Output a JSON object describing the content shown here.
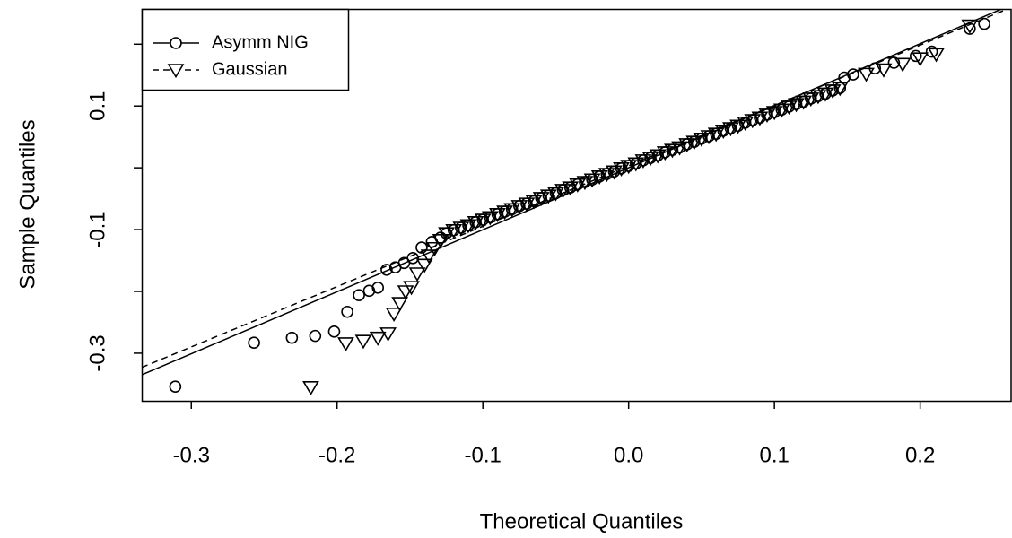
{
  "chart_data": {
    "type": "scatter",
    "x_label": "Theoretical Quantiles",
    "y_label": "Sample Quantiles",
    "xlim": [
      -0.334,
      0.263
    ],
    "ylim": [
      -0.377,
      0.257
    ],
    "xticks": [
      -0.3,
      -0.2,
      -0.1,
      {
        "value": 0,
        "label": "0.0"
      },
      0.1,
      0.2
    ],
    "yticks": [
      -0.3,
      {
        "value": -0.2,
        "label": null
      },
      -0.1,
      {
        "value": 0,
        "label": null
      },
      0.1,
      {
        "value": 0.2,
        "label": null
      }
    ],
    "legend": "top-left",
    "series": [
      {
        "name": "Asymm NIG",
        "color": "#000000",
        "marker": "circle",
        "line_style": "solid",
        "x": [
          -0.311,
          -0.257,
          -0.231,
          -0.215,
          -0.202,
          -0.193,
          -0.185,
          -0.178,
          -0.172,
          -0.166,
          -0.16,
          -0.154,
          -0.148,
          -0.142,
          -0.135,
          -0.129,
          -0.125,
          -0.12,
          -0.115,
          -0.11,
          -0.105,
          -0.1,
          -0.095,
          -0.09,
          -0.085,
          -0.08,
          -0.075,
          -0.07,
          -0.065,
          -0.06,
          -0.055,
          -0.05,
          -0.045,
          -0.04,
          -0.035,
          -0.03,
          -0.025,
          -0.02,
          -0.015,
          -0.01,
          -0.005,
          0,
          0.005,
          0.01,
          0.015,
          0.02,
          0.025,
          0.03,
          0.035,
          0.04,
          0.045,
          0.05,
          0.055,
          0.06,
          0.065,
          0.07,
          0.075,
          0.08,
          0.085,
          0.09,
          0.095,
          0.1,
          0.105,
          0.11,
          0.115,
          0.12,
          0.125,
          0.13,
          0.135,
          0.14,
          0.145,
          0.148,
          0.154,
          0.169,
          0.182,
          0.197,
          0.208,
          0.234,
          0.244
        ],
        "values": [
          -0.354,
          -0.283,
          -0.275,
          -0.272,
          -0.265,
          -0.233,
          -0.206,
          -0.199,
          -0.194,
          -0.165,
          -0.161,
          -0.154,
          -0.146,
          -0.129,
          -0.12,
          -0.113,
          -0.106,
          -0.101,
          -0.097,
          -0.093,
          -0.088,
          -0.084,
          -0.08,
          -0.075,
          -0.071,
          -0.067,
          -0.062,
          -0.058,
          -0.054,
          -0.049,
          -0.045,
          -0.041,
          -0.036,
          -0.032,
          -0.027,
          -0.023,
          -0.019,
          -0.014,
          -0.01,
          -0.006,
          -0.001,
          0.003,
          0.007,
          0.012,
          0.016,
          0.02,
          0.025,
          0.029,
          0.033,
          0.038,
          0.042,
          0.047,
          0.051,
          0.055,
          0.06,
          0.064,
          0.068,
          0.073,
          0.077,
          0.081,
          0.086,
          0.09,
          0.094,
          0.099,
          0.103,
          0.107,
          0.112,
          0.116,
          0.12,
          0.125,
          0.129,
          0.146,
          0.151,
          0.161,
          0.17,
          0.181,
          0.188,
          0.225,
          0.233
        ],
        "ref_line": {
          "x": [
            -0.334,
            0.263
          ],
          "y": [
            -0.335,
            0.264
          ]
        }
      },
      {
        "name": "Gaussian",
        "color": "#000000",
        "marker": "triangle-down",
        "line_style": "dashed",
        "x": [
          -0.218,
          -0.194,
          -0.182,
          -0.172,
          -0.165,
          -0.161,
          -0.157,
          -0.153,
          -0.149,
          -0.145,
          -0.14,
          -0.137,
          -0.133,
          -0.129,
          -0.125,
          -0.12,
          -0.115,
          -0.11,
          -0.105,
          -0.1,
          -0.095,
          -0.09,
          -0.085,
          -0.08,
          -0.075,
          -0.07,
          -0.065,
          -0.06,
          -0.055,
          -0.05,
          -0.045,
          -0.04,
          -0.035,
          -0.03,
          -0.025,
          -0.02,
          -0.015,
          -0.01,
          -0.005,
          0,
          0.005,
          0.01,
          0.015,
          0.02,
          0.025,
          0.03,
          0.035,
          0.04,
          0.045,
          0.05,
          0.055,
          0.06,
          0.065,
          0.07,
          0.075,
          0.08,
          0.085,
          0.09,
          0.095,
          0.1,
          0.105,
          0.11,
          0.115,
          0.12,
          0.125,
          0.13,
          0.135,
          0.14,
          0.145,
          0.163,
          0.175,
          0.188,
          0.2,
          0.211,
          0.234
        ],
        "values": [
          -0.355,
          -0.284,
          -0.28,
          -0.275,
          -0.268,
          -0.236,
          -0.219,
          -0.2,
          -0.193,
          -0.171,
          -0.157,
          -0.142,
          -0.13,
          -0.117,
          -0.106,
          -0.101,
          -0.097,
          -0.093,
          -0.088,
          -0.084,
          -0.08,
          -0.075,
          -0.071,
          -0.067,
          -0.062,
          -0.058,
          -0.054,
          -0.049,
          -0.045,
          -0.041,
          -0.036,
          -0.032,
          -0.027,
          -0.023,
          -0.019,
          -0.014,
          -0.01,
          -0.006,
          -0.001,
          0.003,
          0.007,
          0.012,
          0.016,
          0.02,
          0.025,
          0.029,
          0.033,
          0.038,
          0.042,
          0.047,
          0.051,
          0.055,
          0.06,
          0.064,
          0.068,
          0.073,
          0.077,
          0.081,
          0.086,
          0.09,
          0.094,
          0.099,
          0.103,
          0.107,
          0.112,
          0.116,
          0.12,
          0.125,
          0.129,
          0.152,
          0.159,
          0.168,
          0.177,
          0.184,
          0.23
        ],
        "ref_line": {
          "x": [
            -0.334,
            0.263
          ],
          "y": [
            -0.323,
            0.26
          ]
        }
      }
    ]
  }
}
